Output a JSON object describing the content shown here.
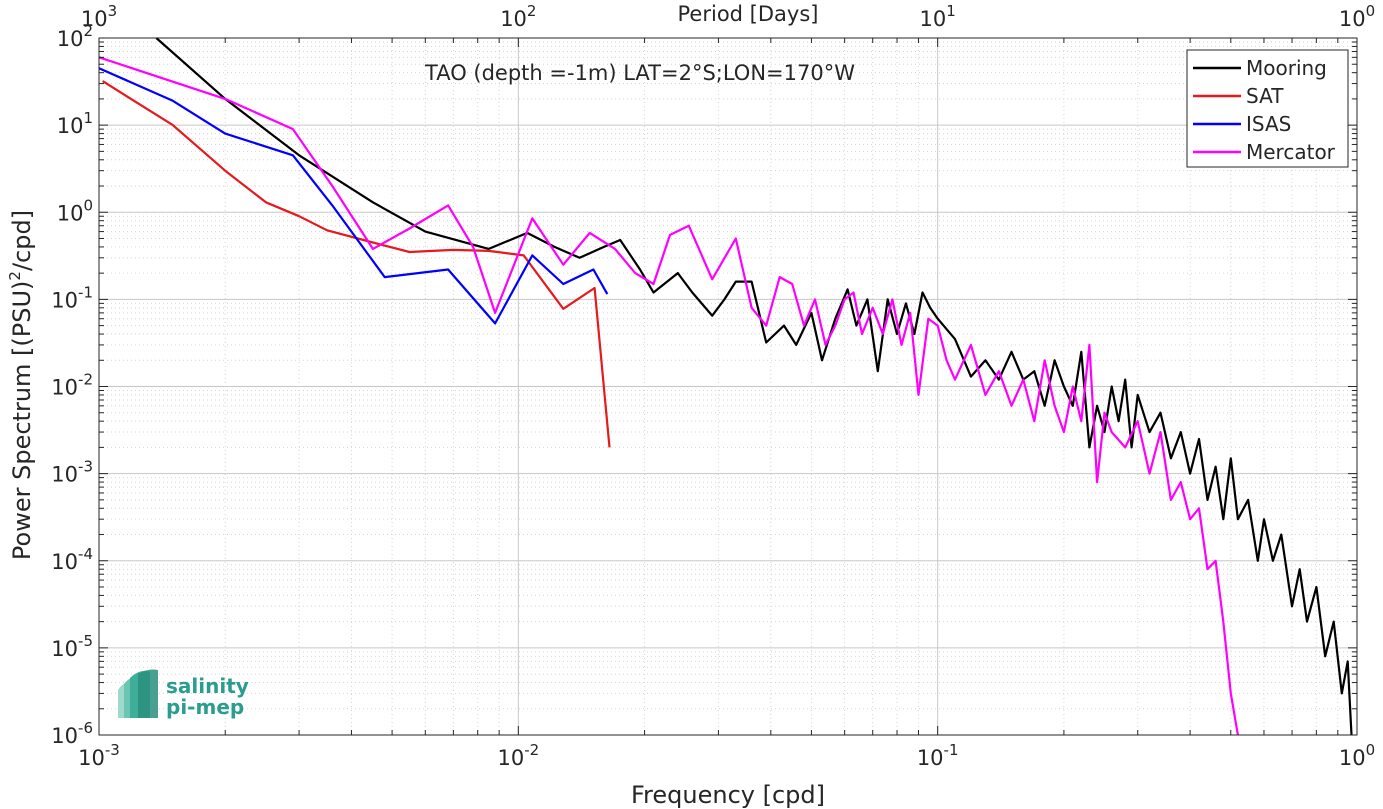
{
  "chart_data": {
    "type": "line",
    "title": "TAO (depth =-1m) LAT=2°S;LON=170°W",
    "xlabel": "Frequency [cpd]",
    "ylabel_main": "Power Spectrum [(PSU)",
    "ylabel_sup": "2",
    "ylabel_tail": "/cpd]",
    "top_xlabel": "Period [Days]",
    "x_scale": "log",
    "y_scale": "log",
    "xlim": [
      0.001,
      1
    ],
    "ylim": [
      1e-06,
      100
    ],
    "grid": true,
    "legend_position": "top-right",
    "x_ticks": [
      {
        "v": 0.001,
        "base": "10",
        "exp": "-3"
      },
      {
        "v": 0.01,
        "base": "10",
        "exp": "-2"
      },
      {
        "v": 0.1,
        "base": "10",
        "exp": "-1"
      },
      {
        "v": 1,
        "base": "10",
        "exp": "0"
      }
    ],
    "y_ticks": [
      {
        "v": 100,
        "base": "10",
        "exp": "2"
      },
      {
        "v": 10,
        "base": "10",
        "exp": "1"
      },
      {
        "v": 1,
        "base": "10",
        "exp": "0"
      },
      {
        "v": 0.1,
        "base": "10",
        "exp": "-1"
      },
      {
        "v": 0.01,
        "base": "10",
        "exp": "-2"
      },
      {
        "v": 0.001,
        "base": "10",
        "exp": "-3"
      },
      {
        "v": 0.0001,
        "base": "10",
        "exp": "-4"
      },
      {
        "v": 1e-05,
        "base": "10",
        "exp": "-5"
      },
      {
        "v": 1e-06,
        "base": "10",
        "exp": "-6"
      }
    ],
    "top_ticks": [
      {
        "v": 0.001,
        "base": "10",
        "exp": "3"
      },
      {
        "v": 0.01,
        "base": "10",
        "exp": "2"
      },
      {
        "v": 0.1,
        "base": "10",
        "exp": "1"
      },
      {
        "v": 1,
        "base": "10",
        "exp": "0"
      }
    ],
    "series": [
      {
        "name": "Mooring",
        "color": "#000000",
        "points": [
          [
            0.00137,
            100
          ],
          [
            0.002,
            20
          ],
          [
            0.003,
            4.5
          ],
          [
            0.0045,
            1.3
          ],
          [
            0.006,
            0.6
          ],
          [
            0.0085,
            0.38
          ],
          [
            0.0105,
            0.58
          ],
          [
            0.0122,
            0.4
          ],
          [
            0.014,
            0.3
          ],
          [
            0.016,
            0.4
          ],
          [
            0.0175,
            0.48
          ],
          [
            0.0195,
            0.22
          ],
          [
            0.021,
            0.12
          ],
          [
            0.024,
            0.2
          ],
          [
            0.026,
            0.12
          ],
          [
            0.029,
            0.065
          ],
          [
            0.031,
            0.1
          ],
          [
            0.033,
            0.16
          ],
          [
            0.036,
            0.16
          ],
          [
            0.039,
            0.032
          ],
          [
            0.043,
            0.05
          ],
          [
            0.046,
            0.03
          ],
          [
            0.05,
            0.07
          ],
          [
            0.053,
            0.02
          ],
          [
            0.057,
            0.06
          ],
          [
            0.061,
            0.13
          ],
          [
            0.064,
            0.05
          ],
          [
            0.068,
            0.1
          ],
          [
            0.072,
            0.015
          ],
          [
            0.076,
            0.1
          ],
          [
            0.08,
            0.04
          ],
          [
            0.084,
            0.09
          ],
          [
            0.088,
            0.04
          ],
          [
            0.092,
            0.12
          ],
          [
            0.096,
            0.08
          ],
          [
            0.1,
            0.06
          ],
          [
            0.11,
            0.035
          ],
          [
            0.12,
            0.013
          ],
          [
            0.13,
            0.02
          ],
          [
            0.14,
            0.012
          ],
          [
            0.15,
            0.025
          ],
          [
            0.16,
            0.012
          ],
          [
            0.17,
            0.015
          ],
          [
            0.18,
            0.006
          ],
          [
            0.19,
            0.02
          ],
          [
            0.2,
            0.01
          ],
          [
            0.21,
            0.006
          ],
          [
            0.22,
            0.025
          ],
          [
            0.23,
            0.002
          ],
          [
            0.24,
            0.006
          ],
          [
            0.25,
            0.003
          ],
          [
            0.26,
            0.01
          ],
          [
            0.27,
            0.004
          ],
          [
            0.28,
            0.012
          ],
          [
            0.29,
            0.002
          ],
          [
            0.3,
            0.008
          ],
          [
            0.32,
            0.003
          ],
          [
            0.34,
            0.005
          ],
          [
            0.36,
            0.0015
          ],
          [
            0.38,
            0.003
          ],
          [
            0.4,
            0.001
          ],
          [
            0.42,
            0.0025
          ],
          [
            0.44,
            0.0005
          ],
          [
            0.46,
            0.0012
          ],
          [
            0.48,
            0.0003
          ],
          [
            0.5,
            0.0015
          ],
          [
            0.52,
            0.0003
          ],
          [
            0.55,
            0.0005
          ],
          [
            0.58,
            0.0001
          ],
          [
            0.6,
            0.0003
          ],
          [
            0.63,
            0.0001
          ],
          [
            0.66,
            0.0002
          ],
          [
            0.7,
            3e-05
          ],
          [
            0.73,
            8e-05
          ],
          [
            0.76,
            2e-05
          ],
          [
            0.8,
            5e-05
          ],
          [
            0.84,
            8e-06
          ],
          [
            0.88,
            2e-05
          ],
          [
            0.92,
            3e-06
          ],
          [
            0.95,
            7e-06
          ],
          [
            0.97,
            1e-06
          ]
        ]
      },
      {
        "name": "SAT",
        "color": "#e41a1c",
        "points": [
          [
            0.00102,
            32
          ],
          [
            0.0015,
            10
          ],
          [
            0.002,
            3
          ],
          [
            0.0025,
            1.3
          ],
          [
            0.003,
            0.9
          ],
          [
            0.0035,
            0.62
          ],
          [
            0.0045,
            0.45
          ],
          [
            0.0055,
            0.35
          ],
          [
            0.007,
            0.37
          ],
          [
            0.0085,
            0.36
          ],
          [
            0.0103,
            0.32
          ],
          [
            0.0128,
            0.078
          ],
          [
            0.0152,
            0.135
          ],
          [
            0.0165,
            0.002
          ]
        ]
      },
      {
        "name": "ISAS",
        "color": "#0000ff",
        "points": [
          [
            0.001,
            45
          ],
          [
            0.0015,
            19
          ],
          [
            0.002,
            8
          ],
          [
            0.0029,
            4.5
          ],
          [
            0.0036,
            1.2
          ],
          [
            0.0048,
            0.18
          ],
          [
            0.0068,
            0.22
          ],
          [
            0.0088,
            0.053
          ],
          [
            0.0108,
            0.32
          ],
          [
            0.0128,
            0.15
          ],
          [
            0.0151,
            0.22
          ],
          [
            0.0163,
            0.115
          ]
        ]
      },
      {
        "name": "Mercator",
        "color": "#ff00ff",
        "points": [
          [
            0.001,
            60
          ],
          [
            0.002,
            20
          ],
          [
            0.0029,
            9
          ],
          [
            0.0036,
            2
          ],
          [
            0.0045,
            0.38
          ],
          [
            0.0055,
            0.65
          ],
          [
            0.0068,
            1.2
          ],
          [
            0.0078,
            0.4
          ],
          [
            0.0088,
            0.07
          ],
          [
            0.0108,
            0.85
          ],
          [
            0.0128,
            0.25
          ],
          [
            0.0148,
            0.58
          ],
          [
            0.017,
            0.38
          ],
          [
            0.019,
            0.2
          ],
          [
            0.021,
            0.15
          ],
          [
            0.023,
            0.55
          ],
          [
            0.0255,
            0.7
          ],
          [
            0.029,
            0.17
          ],
          [
            0.033,
            0.5
          ],
          [
            0.036,
            0.08
          ],
          [
            0.039,
            0.05
          ],
          [
            0.042,
            0.18
          ],
          [
            0.045,
            0.15
          ],
          [
            0.048,
            0.05
          ],
          [
            0.051,
            0.1
          ],
          [
            0.054,
            0.03
          ],
          [
            0.057,
            0.05
          ],
          [
            0.06,
            0.1
          ],
          [
            0.063,
            0.12
          ],
          [
            0.066,
            0.04
          ],
          [
            0.07,
            0.08
          ],
          [
            0.074,
            0.04
          ],
          [
            0.078,
            0.1
          ],
          [
            0.082,
            0.03
          ],
          [
            0.086,
            0.07
          ],
          [
            0.09,
            0.008
          ],
          [
            0.095,
            0.06
          ],
          [
            0.1,
            0.05
          ],
          [
            0.105,
            0.02
          ],
          [
            0.11,
            0.012
          ],
          [
            0.12,
            0.03
          ],
          [
            0.13,
            0.008
          ],
          [
            0.14,
            0.015
          ],
          [
            0.15,
            0.006
          ],
          [
            0.16,
            0.012
          ],
          [
            0.17,
            0.004
          ],
          [
            0.18,
            0.02
          ],
          [
            0.19,
            0.006
          ],
          [
            0.2,
            0.003
          ],
          [
            0.21,
            0.01
          ],
          [
            0.22,
            0.004
          ],
          [
            0.23,
            0.03
          ],
          [
            0.24,
            0.0008
          ],
          [
            0.25,
            0.005
          ],
          [
            0.26,
            0.003
          ],
          [
            0.28,
            0.002
          ],
          [
            0.3,
            0.004
          ],
          [
            0.32,
            0.001
          ],
          [
            0.34,
            0.003
          ],
          [
            0.36,
            0.0005
          ],
          [
            0.38,
            0.0008
          ],
          [
            0.4,
            0.0003
          ],
          [
            0.42,
            0.0004
          ],
          [
            0.44,
            8e-05
          ],
          [
            0.46,
            0.0001
          ],
          [
            0.48,
            2e-05
          ],
          [
            0.5,
            3e-06
          ],
          [
            0.52,
            1e-06
          ]
        ]
      }
    ]
  },
  "logo": {
    "line1": "salinity",
    "line2": "pi-mep"
  }
}
